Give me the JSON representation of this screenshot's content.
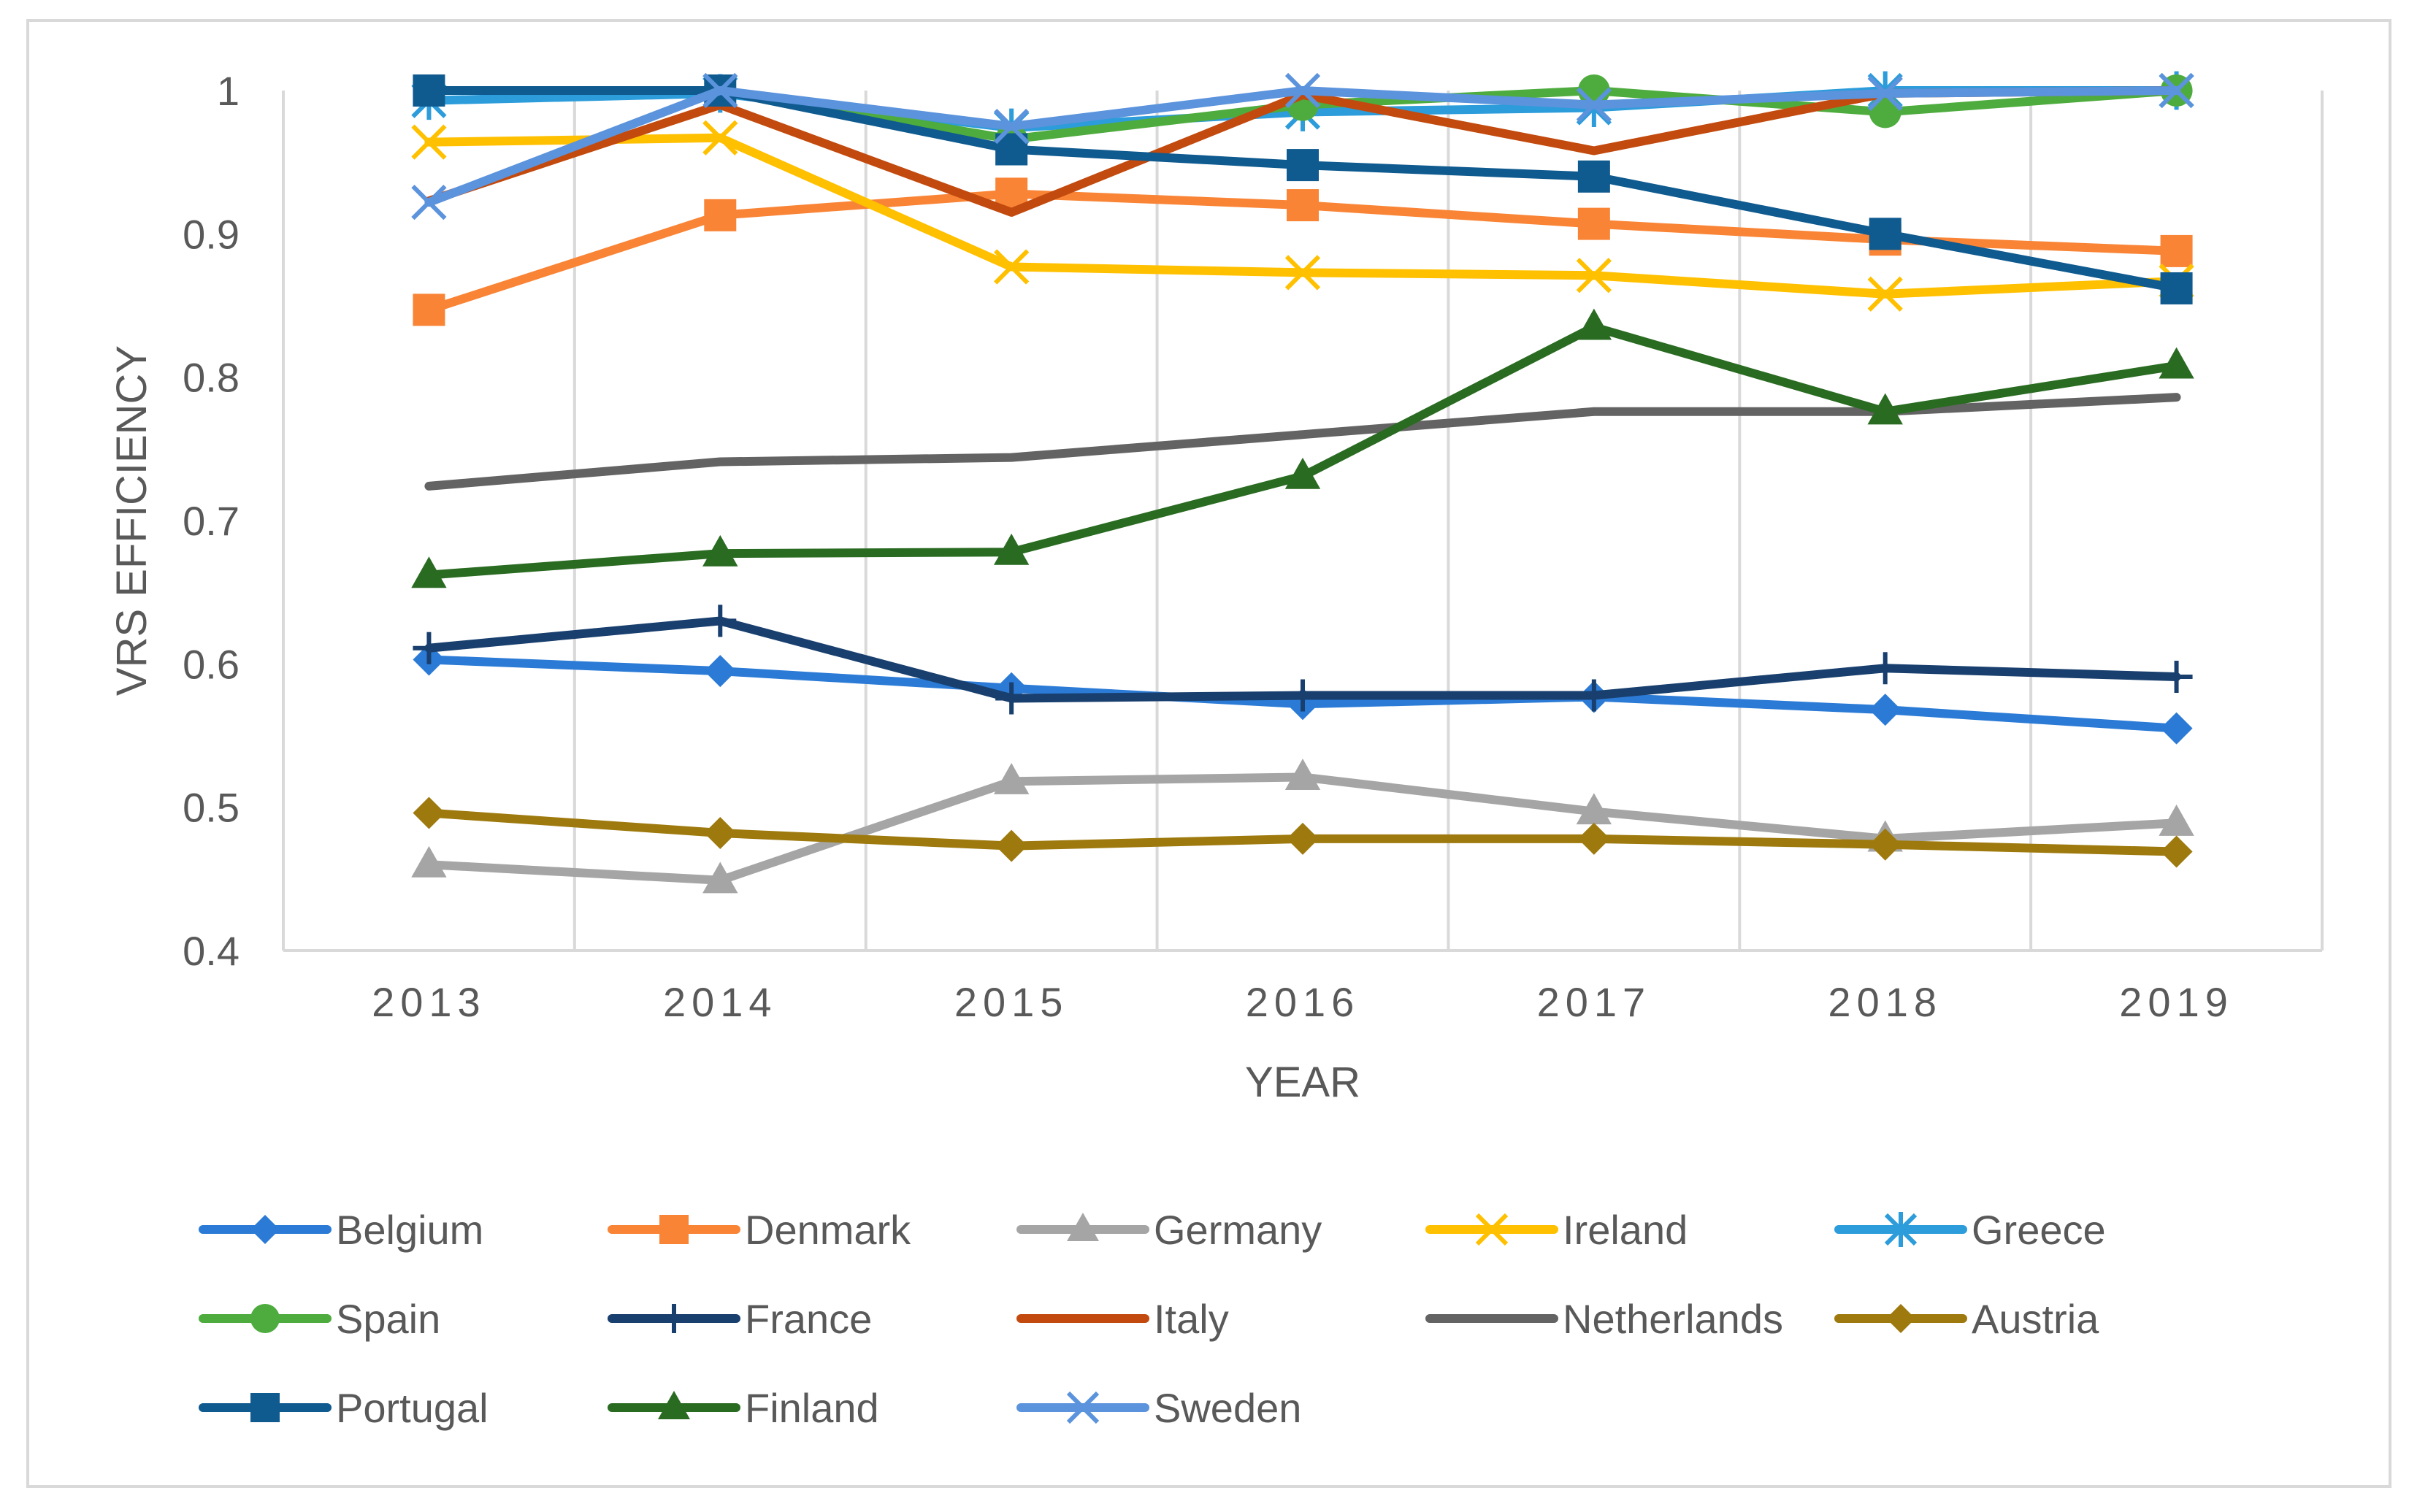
{
  "chart_data": {
    "type": "line",
    "title": "",
    "xlabel": "YEAR",
    "ylabel": "VRS EFFICIENCY",
    "ylim": [
      0.4,
      1
    ],
    "yticks": [
      "0.4",
      "0.5",
      "0.6",
      "0.7",
      "0.8",
      "0.9",
      "1"
    ],
    "categories": [
      "2013",
      "2014",
      "2015",
      "2016",
      "2017",
      "2018",
      "2019"
    ],
    "grid": "vertical",
    "legend": "bottom",
    "series": [
      {
        "name": "Belgium",
        "color": "#2B7BD6",
        "marker": "diamond",
        "values": [
          0.603,
          0.595,
          0.583,
          0.572,
          0.577,
          0.568,
          0.555
        ]
      },
      {
        "name": "Denmark",
        "color": "#F98436",
        "marker": "square",
        "values": [
          0.847,
          0.913,
          0.928,
          0.92,
          0.907,
          0.896,
          0.888
        ]
      },
      {
        "name": "Germany",
        "color": "#A5A5A5",
        "marker": "triangle",
        "values": [
          0.46,
          0.449,
          0.518,
          0.521,
          0.497,
          0.478,
          0.489
        ]
      },
      {
        "name": "Ireland",
        "color": "#FFC000",
        "marker": "x",
        "values": [
          0.964,
          0.967,
          0.877,
          0.873,
          0.871,
          0.858,
          0.867
        ]
      },
      {
        "name": "Greece",
        "color": "#2C9CDB",
        "marker": "star",
        "values": [
          0.993,
          0.998,
          0.974,
          0.985,
          0.988,
          1.0,
          1.0
        ]
      },
      {
        "name": "Spain",
        "color": "#4EAC3E",
        "marker": "circle",
        "values": [
          1.0,
          1.0,
          0.966,
          0.99,
          1.0,
          0.985,
          1.0
        ]
      },
      {
        "name": "France",
        "color": "#193F6E",
        "marker": "plus",
        "values": [
          0.611,
          0.63,
          0.576,
          0.578,
          0.578,
          0.597,
          0.591
        ]
      },
      {
        "name": "Italy",
        "color": "#C24A0E",
        "marker": "none",
        "values": [
          0.923,
          0.99,
          0.915,
          0.997,
          0.958,
          0.998,
          1.0
        ]
      },
      {
        "name": "Netherlands",
        "color": "#636363",
        "marker": "none",
        "values": [
          0.724,
          0.741,
          0.744,
          0.76,
          0.776,
          0.776,
          0.786
        ]
      },
      {
        "name": "Austria",
        "color": "#9E7A0E",
        "marker": "diamond",
        "values": [
          0.496,
          0.482,
          0.473,
          0.478,
          0.478,
          0.474,
          0.469
        ]
      },
      {
        "name": "Portugal",
        "color": "#0F5A8F",
        "marker": "square",
        "values": [
          1.0,
          1.0,
          0.959,
          0.948,
          0.94,
          0.9,
          0.862
        ]
      },
      {
        "name": "Finland",
        "color": "#2A6B22",
        "marker": "triangle",
        "values": [
          0.662,
          0.677,
          0.678,
          0.731,
          0.835,
          0.776,
          0.808
        ]
      },
      {
        "name": "Sweden",
        "color": "#5B93DC",
        "marker": "x",
        "values": [
          0.922,
          1.0,
          0.975,
          1.0,
          0.99,
          0.998,
          1.0
        ]
      }
    ]
  }
}
